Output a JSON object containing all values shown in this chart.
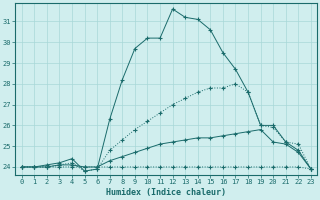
{
  "xlabel": "Humidex (Indice chaleur)",
  "background_color": "#d0eeee",
  "grid_color": "#a8d8d8",
  "line_color": "#1a6b6b",
  "x": [
    0,
    1,
    2,
    3,
    4,
    5,
    6,
    7,
    8,
    9,
    10,
    11,
    12,
    13,
    14,
    15,
    16,
    17,
    18,
    19,
    20,
    21,
    22,
    23
  ],
  "series": [
    [
      24.0,
      24.0,
      24.0,
      24.0,
      24.0,
      24.0,
      24.0,
      24.0,
      24.0,
      24.0,
      24.0,
      24.0,
      24.0,
      24.0,
      24.0,
      24.0,
      24.0,
      24.0,
      24.0,
      24.0,
      24.0,
      24.0,
      24.0,
      23.9
    ],
    [
      24.0,
      24.0,
      24.0,
      24.1,
      24.1,
      24.0,
      24.0,
      24.3,
      24.5,
      24.7,
      24.9,
      25.1,
      25.2,
      25.3,
      25.4,
      25.4,
      25.5,
      25.6,
      25.7,
      25.8,
      25.2,
      25.1,
      24.7,
      23.9
    ],
    [
      24.0,
      24.0,
      24.0,
      24.1,
      24.2,
      23.8,
      23.9,
      24.8,
      25.3,
      25.8,
      26.2,
      26.6,
      27.0,
      27.3,
      27.6,
      27.8,
      27.8,
      28.0,
      27.6,
      26.0,
      25.9,
      25.2,
      25.1,
      23.9
    ],
    [
      24.0,
      24.0,
      24.1,
      24.2,
      24.4,
      23.8,
      23.9,
      26.3,
      28.2,
      29.7,
      30.2,
      30.2,
      31.6,
      31.2,
      31.1,
      30.6,
      29.5,
      28.7,
      27.6,
      26.0,
      26.0,
      25.2,
      24.8,
      23.9
    ]
  ],
  "line_styles": [
    "solid",
    "solid",
    "solid",
    "solid"
  ],
  "dotted_series": [
    0,
    2
  ],
  "ylim": [
    23.6,
    31.9
  ],
  "yticks": [
    24,
    25,
    26,
    27,
    28,
    29,
    30,
    31
  ],
  "xlim": [
    -0.5,
    23.5
  ],
  "xticks": [
    0,
    1,
    2,
    3,
    4,
    5,
    6,
    7,
    8,
    9,
    10,
    11,
    12,
    13,
    14,
    15,
    16,
    17,
    18,
    19,
    20,
    21,
    22,
    23
  ]
}
